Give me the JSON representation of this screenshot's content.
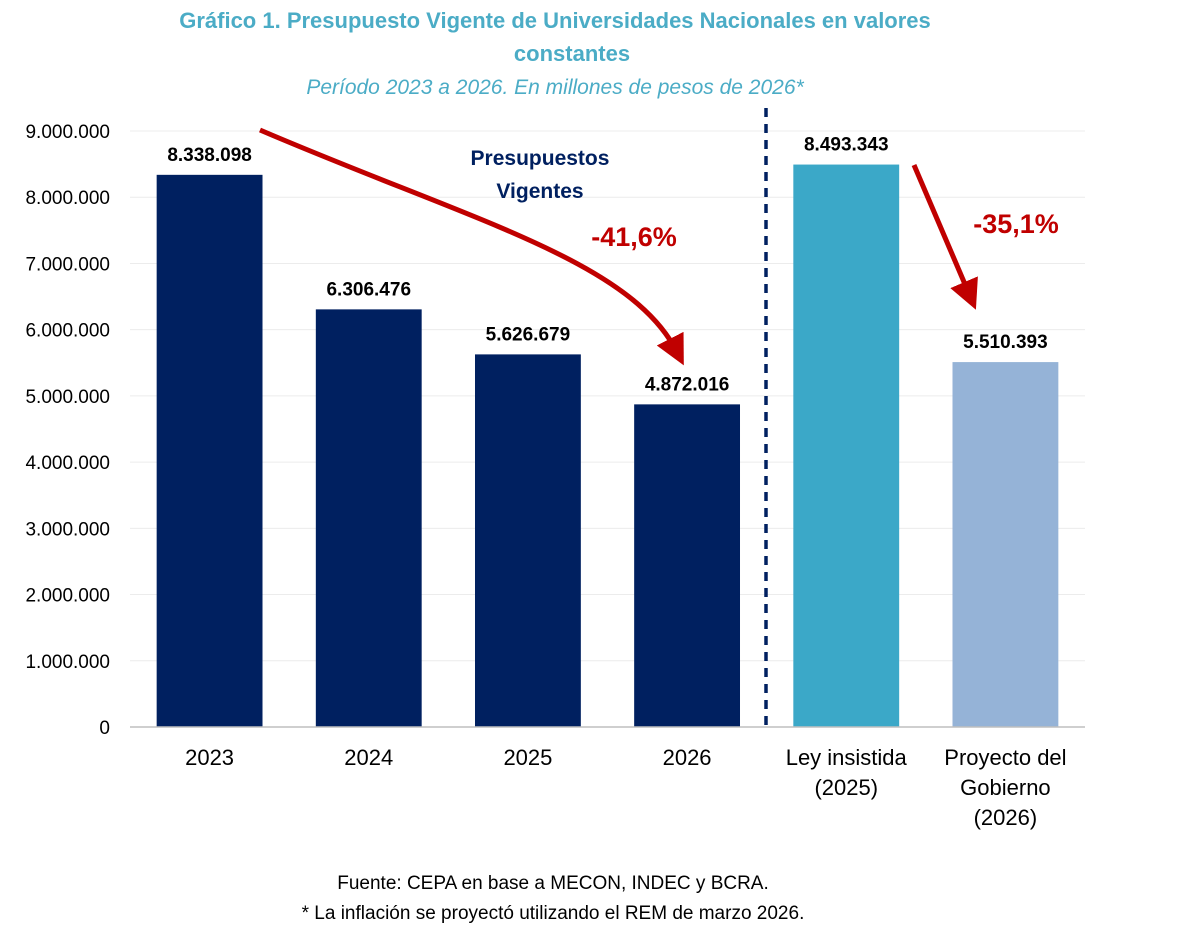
{
  "chart_data": {
    "type": "bar",
    "title": "Gráfico 1. Presupuesto Vigente de Universidades Nacionales en valores constantes",
    "title_lines": [
      "Gráfico 1. Presupuesto Vigente de Universidades Nacionales en valores",
      "constantes"
    ],
    "subtitle": "Período 2023 a 2026. En millones de pesos de 2026*",
    "categories": [
      "2023",
      "2024",
      "2025",
      "2026",
      "Ley insistida (2025)",
      "Proyecto del Gobierno (2026)"
    ],
    "category_lines": [
      [
        "2023"
      ],
      [
        "2024"
      ],
      [
        "2025"
      ],
      [
        "2026"
      ],
      [
        "Ley insistida",
        "(2025)"
      ],
      [
        "Proyecto del",
        "Gobierno",
        "(2026)"
      ]
    ],
    "values": [
      8338098,
      6306476,
      5626679,
      4872016,
      8493343,
      5510393
    ],
    "data_labels": [
      "8.338.098",
      "6.306.476",
      "5.626.679",
      "4.872.016",
      "8.493.343",
      "5.510.393"
    ],
    "bar_colors": [
      "#002060",
      "#002060",
      "#002060",
      "#002060",
      "#3ba8c8",
      "#95b3d7"
    ],
    "ylim": [
      0,
      9000000
    ],
    "yticks": [
      0,
      1000000,
      2000000,
      3000000,
      4000000,
      5000000,
      6000000,
      7000000,
      8000000,
      9000000
    ],
    "ytick_labels": [
      "0",
      "1.000.000",
      "2.000.000",
      "3.000.000",
      "4.000.000",
      "5.000.000",
      "6.000.000",
      "7.000.000",
      "8.000.000",
      "9.000.000"
    ],
    "xlabel": "",
    "ylabel": "",
    "grid": true,
    "group_label_lines": [
      "Presupuestos",
      "Vigentes"
    ],
    "annotations": [
      {
        "text": "-41,6%",
        "from_index": 0,
        "to_index": 3
      },
      {
        "text": "-35,1%",
        "from_index": 4,
        "to_index": 5
      }
    ],
    "separator_after_index": 3
  },
  "footer": {
    "source": "Fuente: CEPA en base a MECON, INDEC y BCRA.",
    "note": "* La inflación se proyectó utilizando el REM de marzo 2026."
  },
  "colors": {
    "title": "#4bacc6",
    "group_label": "#002060",
    "arrow": "#c00000",
    "separator": "#002060"
  }
}
